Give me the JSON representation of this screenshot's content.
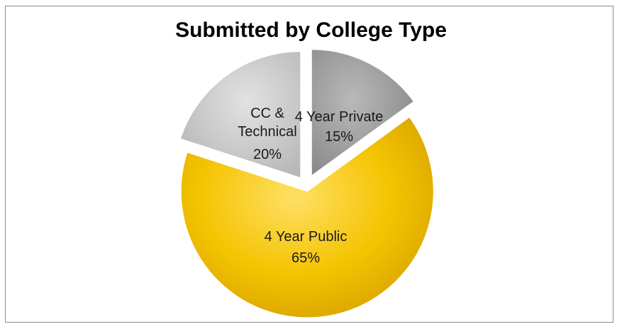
{
  "chart_data": {
    "type": "pie",
    "title": "Submitted by College Type",
    "slices": [
      {
        "name": "4 Year Private",
        "value": 15,
        "label": "15%",
        "color": "#9d9d9d"
      },
      {
        "name": "4 Year Public",
        "value": 65,
        "label": "65%",
        "color": "#f2c200"
      },
      {
        "name": "CC & Technical",
        "value": 20,
        "label": "20%",
        "color": "#c8c8c8"
      }
    ],
    "start_angle_deg": 0,
    "direction": "clockwise",
    "exploded": true,
    "legend": "none"
  }
}
